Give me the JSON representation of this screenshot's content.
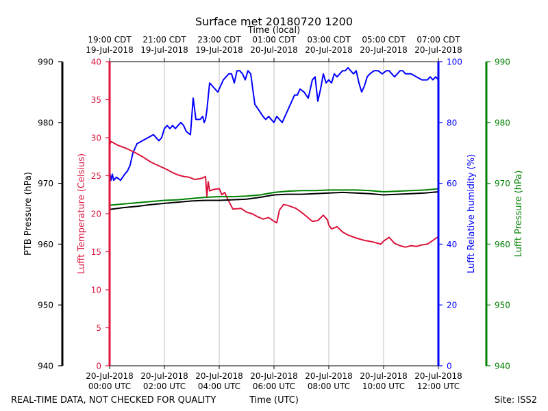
{
  "chart_data": {
    "type": "line",
    "title": "Surface met 20180720 1200",
    "top_axis_title": "Time (local)",
    "xlabel": "Time (UTC)",
    "x_unit": "hours since 20-Jul-2018 00:00 UTC",
    "xlim": [
      0,
      12
    ],
    "bottom_ticks": [
      {
        "x": 0,
        "line1": "20-Jul-2018",
        "line2": "00:00 UTC"
      },
      {
        "x": 2,
        "line1": "20-Jul-2018",
        "line2": "02:00 UTC"
      },
      {
        "x": 4,
        "line1": "20-Jul-2018",
        "line2": "04:00 UTC"
      },
      {
        "x": 6,
        "line1": "20-Jul-2018",
        "line2": "06:00 UTC"
      },
      {
        "x": 8,
        "line1": "20-Jul-2018",
        "line2": "08:00 UTC"
      },
      {
        "x": 10,
        "line1": "20-Jul-2018",
        "line2": "10:00 UTC"
      },
      {
        "x": 12,
        "line1": "20-Jul-2018",
        "line2": "12:00 UTC"
      }
    ],
    "top_ticks": [
      {
        "x": 0,
        "line1": "19:00 CDT",
        "line2": "19-Jul-2018"
      },
      {
        "x": 2,
        "line1": "21:00 CDT",
        "line2": "19-Jul-2018"
      },
      {
        "x": 4,
        "line1": "23:00 CDT",
        "line2": "19-Jul-2018"
      },
      {
        "x": 6,
        "line1": "01:00 CDT",
        "line2": "20-Jul-2018"
      },
      {
        "x": 8,
        "line1": "03:00 CDT",
        "line2": "20-Jul-2018"
      },
      {
        "x": 10,
        "line1": "05:00 CDT",
        "line2": "20-Jul-2018"
      },
      {
        "x": 12,
        "line1": "07:00 CDT",
        "line2": "20-Jul-2018"
      }
    ],
    "vertical_grid": true,
    "axes": {
      "ptb_pressure": {
        "label": "PTB Pressure (hPa)",
        "ylim": [
          940,
          990
        ],
        "ticks": [
          940,
          950,
          960,
          970,
          980,
          990
        ],
        "color": "#000000"
      },
      "temperature": {
        "label": "Lufft Temperature (Celsius)",
        "ylim": [
          0,
          40
        ],
        "ticks": [
          0,
          5,
          10,
          15,
          20,
          25,
          30,
          35,
          40
        ],
        "color": "#dc143c"
      },
      "humidity": {
        "label": "Lufft Relative humidity (%)",
        "ylim": [
          0,
          100
        ],
        "ticks": [
          0,
          20,
          40,
          60,
          80,
          100
        ],
        "color": "#0000ff"
      },
      "lufft_pressure": {
        "label": "Lufft Pressure (hPa)",
        "ylim": [
          940,
          990
        ],
        "ticks": [
          940,
          950,
          960,
          970,
          980,
          990
        ],
        "color": "#008000"
      }
    },
    "series": [
      {
        "name": "Lufft Relative humidity",
        "axis": "humidity",
        "color": "#0000ff",
        "x": [
          0,
          0.05,
          0.1,
          0.15,
          0.25,
          0.4,
          0.55,
          0.65,
          0.75,
          0.85,
          1.0,
          1.2,
          1.4,
          1.6,
          1.8,
          1.9,
          2.0,
          2.1,
          2.2,
          2.3,
          2.4,
          2.5,
          2.6,
          2.7,
          2.8,
          2.95,
          3.05,
          3.15,
          3.3,
          3.4,
          3.45,
          3.5,
          3.55,
          3.65,
          3.75,
          3.85,
          3.95,
          4.05,
          4.15,
          4.25,
          4.35,
          4.45,
          4.55,
          4.65,
          4.75,
          4.85,
          4.95,
          5.05,
          5.15,
          5.3,
          5.45,
          5.6,
          5.7,
          5.8,
          5.9,
          6.0,
          6.1,
          6.2,
          6.3,
          6.45,
          6.6,
          6.75,
          6.85,
          6.95,
          7.1,
          7.25,
          7.4,
          7.5,
          7.6,
          7.7,
          7.8,
          7.9,
          8.0,
          8.1,
          8.2,
          8.3,
          8.4,
          8.5,
          8.6,
          8.7,
          8.8,
          8.9,
          9.0,
          9.1,
          9.2,
          9.3,
          9.4,
          9.5,
          9.65,
          9.8,
          9.95,
          10.1,
          10.2,
          10.3,
          10.4,
          10.5,
          10.6,
          10.7,
          10.8,
          11.0,
          11.2,
          11.4,
          11.6,
          11.7,
          11.8,
          11.9,
          12.0
        ],
        "values": [
          64,
          61,
          63,
          61,
          62,
          61,
          63,
          64,
          66,
          70,
          73,
          74,
          75,
          76,
          74,
          75,
          78,
          79,
          78,
          79,
          78,
          79,
          80,
          79,
          77,
          76,
          88,
          81,
          81,
          82,
          80,
          81,
          84,
          93,
          92,
          91,
          90,
          92,
          94,
          95,
          96,
          96,
          93,
          97,
          97,
          96,
          94,
          97,
          96,
          86,
          84,
          82,
          81,
          82,
          81,
          80,
          82,
          81,
          80,
          83,
          86,
          89,
          89,
          91,
          90,
          88,
          94,
          95,
          87,
          91,
          96,
          93,
          94,
          93,
          96,
          95,
          96,
          97,
          97,
          98,
          97,
          96,
          97,
          93,
          90,
          92,
          95,
          96,
          97,
          97,
          96,
          97,
          97,
          96,
          95,
          96,
          97,
          97,
          96,
          96,
          95,
          94,
          94,
          95,
          94,
          95,
          94
        ]
      },
      {
        "name": "Lufft Temperature",
        "axis": "temperature",
        "color": "#dc143c",
        "x": [
          0,
          0.05,
          0.3,
          0.6,
          0.9,
          1.2,
          1.5,
          1.8,
          2.1,
          2.3,
          2.5,
          2.7,
          2.9,
          3.1,
          3.3,
          3.4,
          3.5,
          3.55,
          3.6,
          3.65,
          3.8,
          4.0,
          4.1,
          4.2,
          4.3,
          4.5,
          4.8,
          5.0,
          5.2,
          5.4,
          5.6,
          5.8,
          6.0,
          6.1,
          6.2,
          6.35,
          6.5,
          6.8,
          7.0,
          7.2,
          7.4,
          7.6,
          7.8,
          7.95,
          8.0,
          8.1,
          8.3,
          8.5,
          8.7,
          9.0,
          9.3,
          9.6,
          9.9,
          10.0,
          10.2,
          10.4,
          10.6,
          10.8,
          11.0,
          11.2,
          11.4,
          11.6,
          11.8,
          12.0
        ],
        "values": [
          29,
          29.5,
          29.0,
          28.6,
          28.1,
          27.5,
          26.8,
          26.3,
          25.8,
          25.4,
          25.1,
          24.9,
          24.8,
          24.5,
          24.6,
          24.7,
          24.9,
          22.3,
          24.2,
          23.0,
          23.2,
          23.3,
          22.5,
          22.8,
          22.0,
          20.6,
          20.7,
          20.2,
          20.0,
          19.6,
          19.3,
          19.5,
          19.0,
          18.8,
          20.5,
          21.2,
          21.1,
          20.7,
          20.2,
          19.6,
          19.0,
          19.1,
          19.8,
          19.2,
          18.5,
          18.0,
          18.3,
          17.6,
          17.2,
          16.8,
          16.5,
          16.3,
          16.0,
          16.4,
          16.9,
          16.1,
          15.8,
          15.6,
          15.8,
          15.7,
          15.9,
          16.0,
          16.5,
          17.0
        ]
      },
      {
        "name": "Lufft Pressure",
        "axis": "lufft_pressure",
        "color": "#008000",
        "x": [
          0,
          0.5,
          1.0,
          1.5,
          2.0,
          2.5,
          3.0,
          3.5,
          4.0,
          4.5,
          5.0,
          5.5,
          6.0,
          6.5,
          7.0,
          7.5,
          8.0,
          8.5,
          9.0,
          9.5,
          10.0,
          10.5,
          11.0,
          11.5,
          12.0
        ],
        "values": [
          966.4,
          966.6,
          966.8,
          967.0,
          967.2,
          967.3,
          967.5,
          967.7,
          967.8,
          967.8,
          967.9,
          968.1,
          968.5,
          968.7,
          968.8,
          968.8,
          968.9,
          968.9,
          968.9,
          968.8,
          968.6,
          968.7,
          968.8,
          968.9,
          969.1
        ]
      },
      {
        "name": "PTB Pressure",
        "axis": "ptb_pressure",
        "color": "#000000",
        "x": [
          0,
          0.5,
          1.0,
          1.5,
          2.0,
          2.5,
          3.0,
          3.5,
          4.0,
          4.5,
          5.0,
          5.5,
          6.0,
          6.5,
          7.0,
          7.5,
          8.0,
          8.5,
          9.0,
          9.5,
          10.0,
          10.5,
          11.0,
          11.5,
          12.0
        ],
        "values": [
          965.7,
          966.0,
          966.2,
          966.5,
          966.7,
          966.9,
          967.1,
          967.2,
          967.2,
          967.3,
          967.4,
          967.7,
          968.1,
          968.2,
          968.2,
          968.3,
          968.4,
          968.5,
          968.4,
          968.3,
          968.1,
          968.2,
          968.3,
          968.4,
          968.6
        ]
      }
    ]
  },
  "footer": {
    "left": "REAL-TIME DATA, NOT CHECKED FOR QUALITY",
    "center": "Time (UTC)",
    "right": "Site: ISS2"
  }
}
